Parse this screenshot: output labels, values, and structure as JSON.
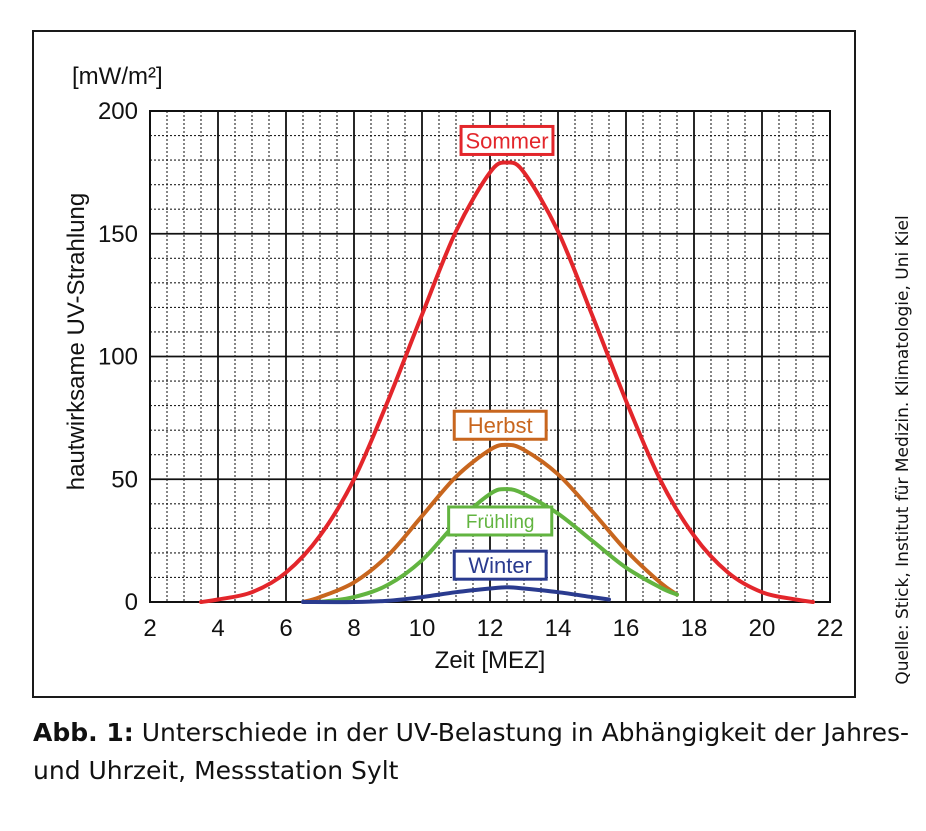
{
  "chart_data": {
    "type": "line",
    "ylabel": "hautwirksame UV-Strahlung",
    "yunit": "[mW/m²]",
    "xlabel": "Zeit [MEZ]",
    "xlim": [
      2,
      22
    ],
    "ylim": [
      0,
      200
    ],
    "x_ticks": [
      2,
      4,
      6,
      8,
      10,
      12,
      14,
      16,
      18,
      20,
      22
    ],
    "y_ticks": [
      0,
      50,
      100,
      150,
      200
    ],
    "grid": true,
    "series": [
      {
        "name": "Sommer",
        "color": "#e3262b",
        "label_at": [
          12.5,
          188
        ],
        "x": [
          3.5,
          4,
          5,
          6,
          7,
          8,
          9,
          10,
          11,
          12,
          12.5,
          13,
          14,
          15,
          16,
          17,
          18,
          19,
          20,
          21,
          21.5
        ],
        "y": [
          0,
          1,
          4,
          12,
          27,
          50,
          82,
          117,
          151,
          175,
          179,
          175,
          151,
          117,
          82,
          50,
          27,
          12,
          4,
          1,
          0
        ]
      },
      {
        "name": "Herbst",
        "color": "#c8661e",
        "label_at": [
          12.3,
          72
        ],
        "x": [
          6.5,
          7,
          8,
          9,
          10,
          11,
          12,
          12.5,
          13,
          14,
          15,
          16,
          17,
          17.5
        ],
        "y": [
          0,
          2,
          8,
          19,
          35,
          51,
          62,
          64,
          62,
          52,
          37,
          21,
          8,
          3
        ]
      },
      {
        "name": "Frühling",
        "color": "#62b440",
        "label_at": [
          12.3,
          33
        ],
        "x": [
          7,
          8,
          9,
          10,
          11,
          12,
          12.5,
          13,
          14,
          15,
          16,
          17,
          17.5
        ],
        "y": [
          0,
          2,
          7,
          17,
          32,
          44,
          46,
          44,
          36,
          25,
          14,
          6,
          3
        ]
      },
      {
        "name": "Winter",
        "color": "#2a3b8f",
        "label_at": [
          12.3,
          15
        ],
        "x": [
          6.5,
          8,
          9,
          10,
          11,
          12,
          12.5,
          13,
          14,
          15,
          15.5
        ],
        "y": [
          0,
          0,
          0.5,
          2,
          4,
          5.5,
          6,
          5.5,
          4,
          2,
          1
        ]
      }
    ]
  },
  "caption": {
    "label": "Abb. 1:",
    "text": "Unterschiede in der UV-Belastung in Abhängigkeit der Jahres- und Uhrzeit, Messstation Sylt"
  },
  "source": "Quelle: Stick, Institut für Medizin. Klimatologie, Uni Kiel"
}
